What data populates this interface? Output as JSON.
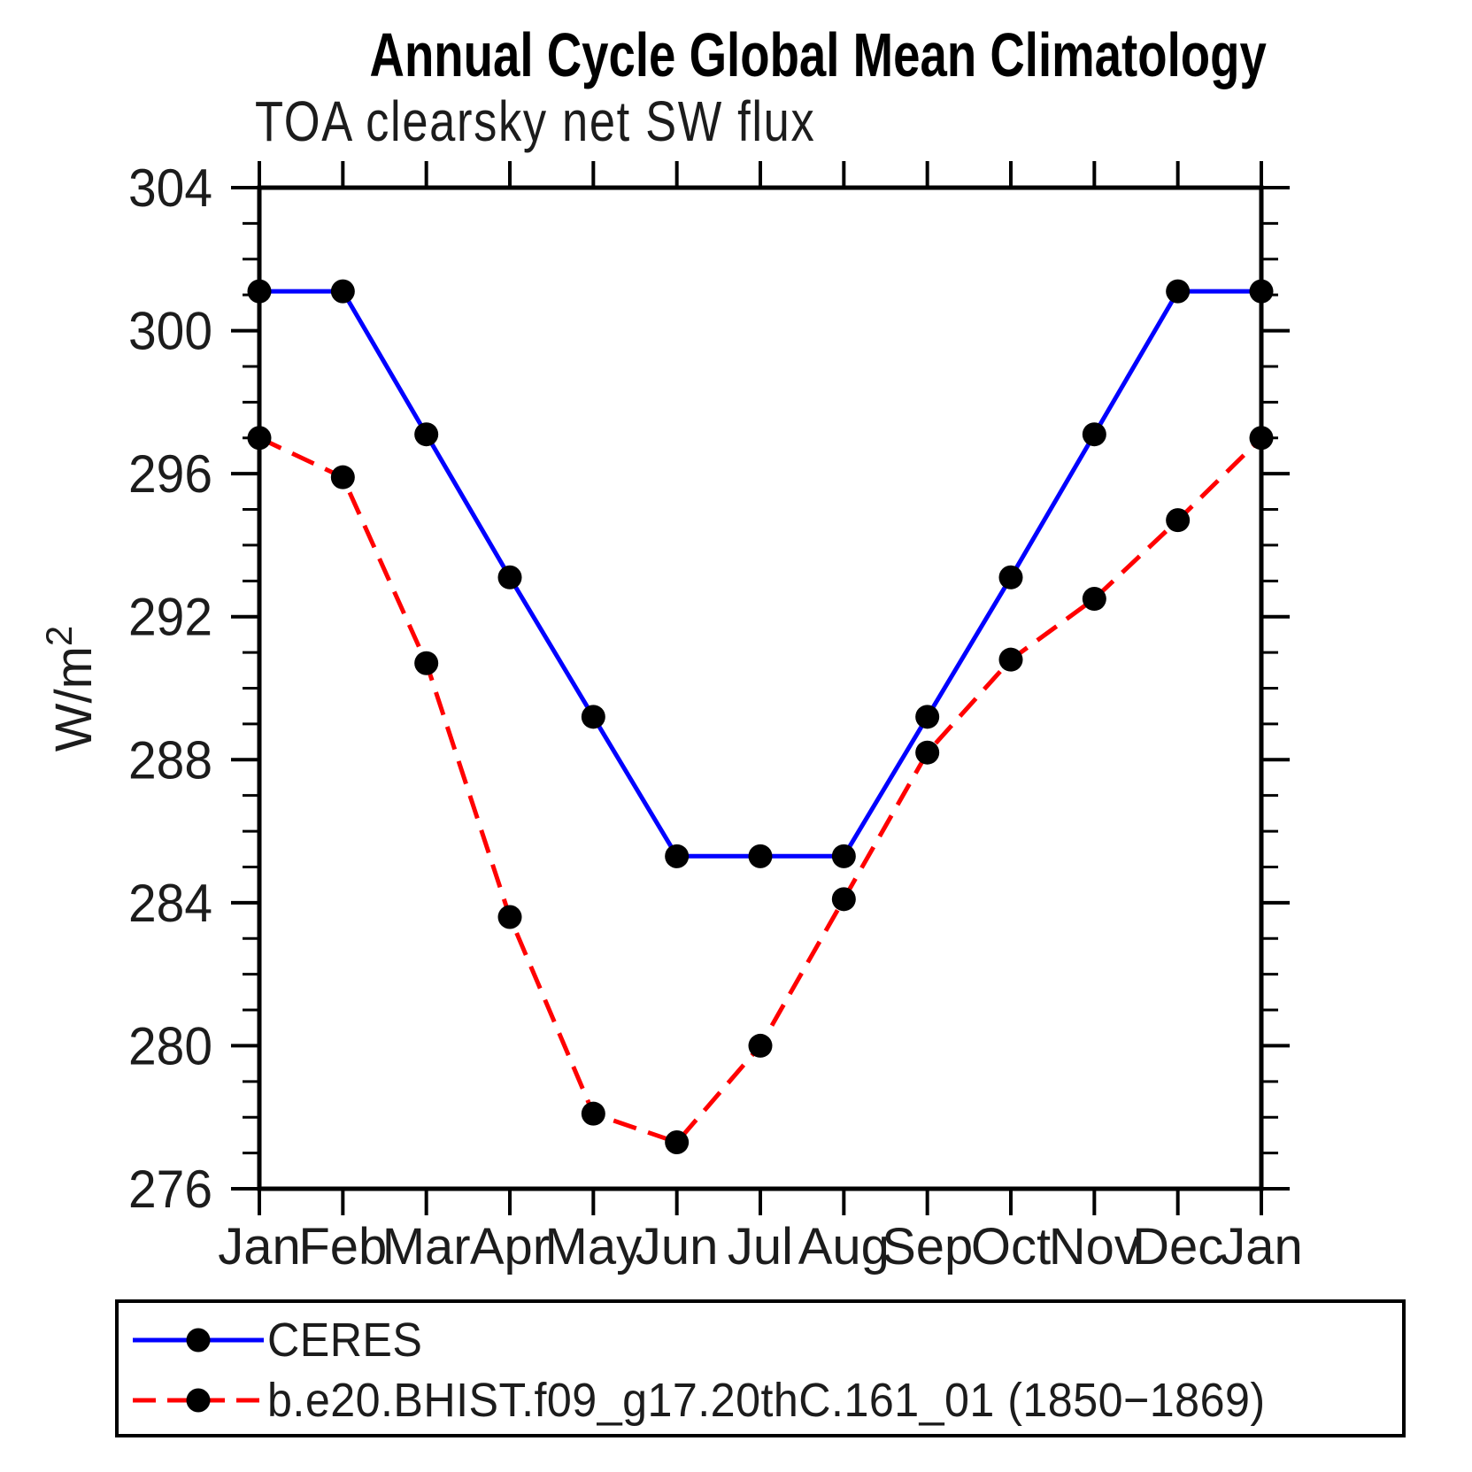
{
  "chart_data": {
    "type": "line",
    "title": "Annual Cycle Global Mean Climatology",
    "subtitle": "TOA clearsky net SW flux",
    "ylabel_base": "W/m",
    "ylabel_exponent": "2",
    "categories": [
      "Jan",
      "Feb",
      "Mar",
      "Apr",
      "May",
      "Jun",
      "Jul",
      "Aug",
      "Sep",
      "Oct",
      "Nov",
      "Dec",
      "Jan"
    ],
    "y_tick_labels": [
      "304",
      "300",
      "296",
      "292",
      "288",
      "284",
      "280",
      "276"
    ],
    "ylim": [
      276,
      304
    ],
    "y_major_step": 4,
    "y_minor_step": 1,
    "grid": false,
    "legend_position": "bottom",
    "axis_color": "#000000",
    "marker_color": "#000000",
    "series": [
      {
        "name": "CERES",
        "color": "#0000ff",
        "line_style": "solid",
        "marker": "circle",
        "values": [
          301.1,
          301.1,
          297.1,
          293.1,
          289.2,
          285.3,
          285.3,
          285.3,
          289.2,
          293.1,
          297.1,
          301.1,
          301.1
        ]
      },
      {
        "name": "b.e20.BHIST.f09_g17.20thC.161_01 (1850−1869)",
        "color": "#ff0000",
        "line_style": "dashed",
        "marker": "circle",
        "values": [
          297.0,
          295.9,
          290.7,
          283.6,
          278.1,
          277.3,
          280.0,
          284.1,
          288.2,
          290.8,
          292.5,
          294.7,
          297.0
        ]
      }
    ]
  }
}
